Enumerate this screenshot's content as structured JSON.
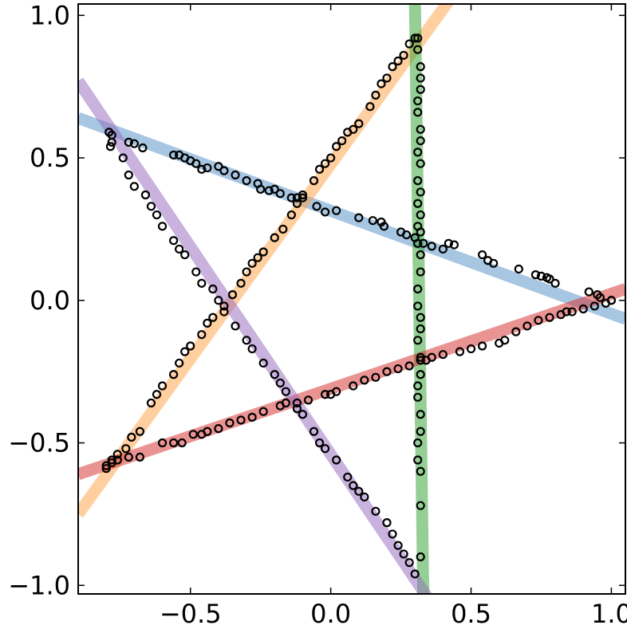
{
  "chart_data": {
    "type": "scatter",
    "title": "",
    "xlabel": "",
    "ylabel": "",
    "xlim": [
      -0.9,
      1.05
    ],
    "ylim": [
      -1.03,
      1.04
    ],
    "xticks": [
      -0.5,
      0.0,
      0.5,
      1.0
    ],
    "xtick_labels": [
      "−0.5",
      "0.0",
      "0.5",
      "1.0"
    ],
    "yticks": [
      -1.0,
      -0.5,
      0.0,
      0.5,
      1.0
    ],
    "ytick_labels": [
      "−1.0",
      "−0.5",
      "0.0",
      "0.5",
      "1.0"
    ],
    "grid": false,
    "legend": "none",
    "marker": "open-circle",
    "series": [
      {
        "color": "#4f8ec4",
        "fit_line": [
          [
            -0.9,
            0.64
          ],
          [
            1.05,
            -0.065
          ]
        ],
        "points": [
          [
            -0.79,
            0.59
          ],
          [
            -0.785,
            0.54
          ],
          [
            -0.78,
            0.555
          ],
          [
            -0.72,
            0.555
          ],
          [
            -0.7,
            0.55
          ],
          [
            -0.67,
            0.535
          ],
          [
            -0.56,
            0.51
          ],
          [
            -0.54,
            0.51
          ],
          [
            -0.52,
            0.5
          ],
          [
            -0.5,
            0.49
          ],
          [
            -0.48,
            0.48
          ],
          [
            -0.46,
            0.46
          ],
          [
            -0.44,
            0.465
          ],
          [
            -0.4,
            0.47
          ],
          [
            -0.38,
            0.455
          ],
          [
            -0.34,
            0.44
          ],
          [
            -0.3,
            0.42
          ],
          [
            -0.26,
            0.41
          ],
          [
            -0.25,
            0.39
          ],
          [
            -0.22,
            0.385
          ],
          [
            -0.2,
            0.39
          ],
          [
            -0.18,
            0.375
          ],
          [
            -0.14,
            0.36
          ],
          [
            -0.12,
            0.36
          ],
          [
            -0.1,
            0.36
          ],
          [
            -0.05,
            0.33
          ],
          [
            -0.02,
            0.31
          ],
          [
            0.02,
            0.315
          ],
          [
            0.1,
            0.29
          ],
          [
            0.15,
            0.28
          ],
          [
            0.18,
            0.275
          ],
          [
            0.19,
            0.26
          ],
          [
            0.25,
            0.24
          ],
          [
            0.27,
            0.23
          ],
          [
            0.3,
            0.22
          ],
          [
            0.33,
            0.2
          ],
          [
            0.36,
            0.19
          ],
          [
            0.4,
            0.18
          ],
          [
            0.42,
            0.2
          ],
          [
            0.44,
            0.195
          ],
          [
            0.54,
            0.16
          ],
          [
            0.56,
            0.14
          ],
          [
            0.58,
            0.13
          ],
          [
            0.67,
            0.11
          ],
          [
            0.73,
            0.09
          ],
          [
            0.75,
            0.085
          ],
          [
            0.77,
            0.08
          ],
          [
            0.78,
            0.075
          ],
          [
            0.8,
            0.06
          ],
          [
            0.92,
            0.03
          ],
          [
            0.95,
            0.02
          ],
          [
            0.96,
            0.01
          ],
          [
            1.0,
            0.0
          ]
        ]
      },
      {
        "color": "#ff9f40",
        "fit_line": [
          [
            -0.9,
            -0.75
          ],
          [
            0.42,
            1.05
          ]
        ],
        "points": [
          [
            -0.8,
            -0.58
          ],
          [
            -0.78,
            -0.56
          ],
          [
            -0.76,
            -0.54
          ],
          [
            -0.73,
            -0.52
          ],
          [
            -0.71,
            -0.48
          ],
          [
            -0.68,
            -0.46
          ],
          [
            -0.64,
            -0.36
          ],
          [
            -0.62,
            -0.33
          ],
          [
            -0.6,
            -0.3
          ],
          [
            -0.56,
            -0.26
          ],
          [
            -0.54,
            -0.22
          ],
          [
            -0.52,
            -0.18
          ],
          [
            -0.5,
            -0.16
          ],
          [
            -0.46,
            -0.12
          ],
          [
            -0.44,
            -0.08
          ],
          [
            -0.42,
            -0.06
          ],
          [
            -0.38,
            -0.02
          ],
          [
            -0.35,
            0.02
          ],
          [
            -0.32,
            0.06
          ],
          [
            -0.3,
            0.1
          ],
          [
            -0.28,
            0.13
          ],
          [
            -0.26,
            0.15
          ],
          [
            -0.24,
            0.17
          ],
          [
            -0.2,
            0.22
          ],
          [
            -0.17,
            0.25
          ],
          [
            -0.14,
            0.3
          ],
          [
            -0.12,
            0.34
          ],
          [
            -0.1,
            0.37
          ],
          [
            -0.06,
            0.42
          ],
          [
            -0.04,
            0.46
          ],
          [
            -0.02,
            0.48
          ],
          [
            0.0,
            0.5
          ],
          [
            0.02,
            0.54
          ],
          [
            0.04,
            0.56
          ],
          [
            0.06,
            0.59
          ],
          [
            0.08,
            0.6
          ],
          [
            0.1,
            0.62
          ],
          [
            0.14,
            0.68
          ],
          [
            0.16,
            0.72
          ],
          [
            0.18,
            0.76
          ],
          [
            0.2,
            0.78
          ],
          [
            0.22,
            0.82
          ],
          [
            0.24,
            0.84
          ],
          [
            0.26,
            0.86
          ],
          [
            0.28,
            0.9
          ],
          [
            0.3,
            0.92
          ]
        ]
      },
      {
        "color": "#2ca02c",
        "fit_line": [
          [
            0.3,
            1.05
          ],
          [
            0.33,
            -1.05
          ]
        ],
        "points": [
          [
            0.31,
            0.92
          ],
          [
            0.31,
            0.88
          ],
          [
            0.32,
            0.82
          ],
          [
            0.32,
            0.78
          ],
          [
            0.32,
            0.74
          ],
          [
            0.31,
            0.7
          ],
          [
            0.31,
            0.66
          ],
          [
            0.32,
            0.6
          ],
          [
            0.32,
            0.56
          ],
          [
            0.31,
            0.52
          ],
          [
            0.32,
            0.48
          ],
          [
            0.31,
            0.42
          ],
          [
            0.32,
            0.38
          ],
          [
            0.31,
            0.34
          ],
          [
            0.32,
            0.3
          ],
          [
            0.31,
            0.26
          ],
          [
            0.32,
            0.24
          ],
          [
            0.31,
            0.2
          ],
          [
            0.32,
            0.16
          ],
          [
            0.32,
            0.1
          ],
          [
            0.31,
            0.04
          ],
          [
            0.31,
            -0.02
          ],
          [
            0.32,
            -0.06
          ],
          [
            0.32,
            -0.1
          ],
          [
            0.31,
            -0.14
          ],
          [
            0.32,
            -0.2
          ],
          [
            0.32,
            -0.26
          ],
          [
            0.31,
            -0.3
          ],
          [
            0.31,
            -0.34
          ],
          [
            0.32,
            -0.4
          ],
          [
            0.32,
            -0.46
          ],
          [
            0.31,
            -0.5
          ],
          [
            0.31,
            -0.56
          ],
          [
            0.32,
            -0.6
          ],
          [
            0.32,
            -0.72
          ],
          [
            0.32,
            -0.9
          ]
        ]
      },
      {
        "color": "#d62728",
        "fit_line": [
          [
            -0.9,
            -0.61
          ],
          [
            1.05,
            0.04
          ]
        ],
        "points": [
          [
            -0.8,
            -0.59
          ],
          [
            -0.78,
            -0.57
          ],
          [
            -0.76,
            -0.56
          ],
          [
            -0.72,
            -0.55
          ],
          [
            -0.68,
            -0.55
          ],
          [
            -0.6,
            -0.5
          ],
          [
            -0.56,
            -0.5
          ],
          [
            -0.53,
            -0.5
          ],
          [
            -0.49,
            -0.47
          ],
          [
            -0.46,
            -0.47
          ],
          [
            -0.44,
            -0.46
          ],
          [
            -0.4,
            -0.45
          ],
          [
            -0.36,
            -0.43
          ],
          [
            -0.32,
            -0.42
          ],
          [
            -0.28,
            -0.41
          ],
          [
            -0.24,
            -0.39
          ],
          [
            -0.18,
            -0.37
          ],
          [
            -0.16,
            -0.36
          ],
          [
            -0.12,
            -0.36
          ],
          [
            -0.08,
            -0.35
          ],
          [
            -0.02,
            -0.33
          ],
          [
            0.0,
            -0.33
          ],
          [
            0.02,
            -0.32
          ],
          [
            0.08,
            -0.3
          ],
          [
            0.12,
            -0.28
          ],
          [
            0.16,
            -0.27
          ],
          [
            0.2,
            -0.25
          ],
          [
            0.24,
            -0.24
          ],
          [
            0.28,
            -0.23
          ],
          [
            0.32,
            -0.21
          ],
          [
            0.34,
            -0.21
          ],
          [
            0.36,
            -0.2
          ],
          [
            0.4,
            -0.19
          ],
          [
            0.46,
            -0.18
          ],
          [
            0.5,
            -0.17
          ],
          [
            0.54,
            -0.16
          ],
          [
            0.6,
            -0.15
          ],
          [
            0.62,
            -0.14
          ],
          [
            0.66,
            -0.11
          ],
          [
            0.7,
            -0.09
          ],
          [
            0.74,
            -0.07
          ],
          [
            0.78,
            -0.06
          ],
          [
            0.82,
            -0.05
          ],
          [
            0.84,
            -0.04
          ],
          [
            0.86,
            -0.04
          ],
          [
            0.9,
            -0.03
          ],
          [
            0.94,
            -0.02
          ],
          [
            0.98,
            -0.01
          ],
          [
            1.0,
            0.0
          ]
        ]
      },
      {
        "color": "#9467bd",
        "fit_line": [
          [
            -0.9,
            0.77
          ],
          [
            0.35,
            -1.05
          ]
        ],
        "points": [
          [
            -0.78,
            0.58
          ],
          [
            -0.74,
            0.5
          ],
          [
            -0.72,
            0.44
          ],
          [
            -0.7,
            0.4
          ],
          [
            -0.66,
            0.37
          ],
          [
            -0.64,
            0.33
          ],
          [
            -0.62,
            0.3
          ],
          [
            -0.6,
            0.26
          ],
          [
            -0.56,
            0.21
          ],
          [
            -0.54,
            0.18
          ],
          [
            -0.52,
            0.16
          ],
          [
            -0.48,
            0.1
          ],
          [
            -0.46,
            0.06
          ],
          [
            -0.42,
            0.04
          ],
          [
            -0.4,
            0.0
          ],
          [
            -0.38,
            -0.04
          ],
          [
            -0.34,
            -0.09
          ],
          [
            -0.3,
            -0.14
          ],
          [
            -0.28,
            -0.17
          ],
          [
            -0.24,
            -0.22
          ],
          [
            -0.2,
            -0.26
          ],
          [
            -0.18,
            -0.29
          ],
          [
            -0.16,
            -0.32
          ],
          [
            -0.12,
            -0.38
          ],
          [
            -0.1,
            -0.4
          ],
          [
            -0.06,
            -0.46
          ],
          [
            -0.04,
            -0.5
          ],
          [
            -0.02,
            -0.52
          ],
          [
            0.02,
            -0.56
          ],
          [
            0.06,
            -0.62
          ],
          [
            0.08,
            -0.65
          ],
          [
            0.1,
            -0.67
          ],
          [
            0.12,
            -0.69
          ],
          [
            0.16,
            -0.74
          ],
          [
            0.2,
            -0.78
          ],
          [
            0.22,
            -0.82
          ],
          [
            0.24,
            -0.86
          ],
          [
            0.26,
            -0.89
          ],
          [
            0.28,
            -0.92
          ],
          [
            0.3,
            -0.96
          ]
        ]
      }
    ]
  }
}
